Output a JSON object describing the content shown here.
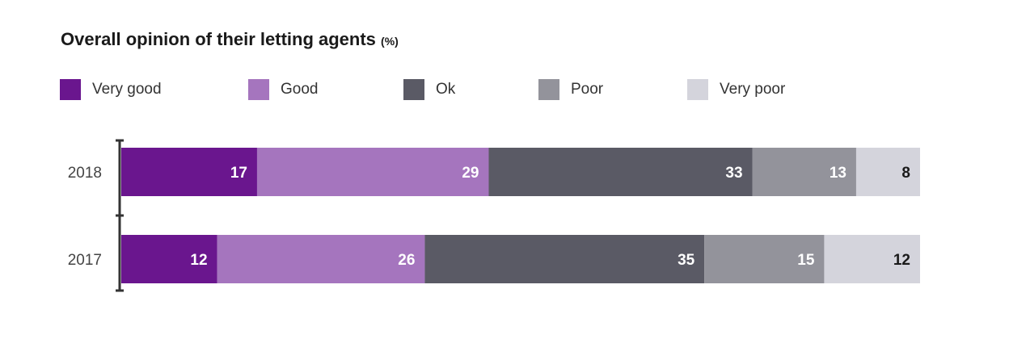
{
  "chart_data": {
    "type": "bar",
    "orientation": "horizontal",
    "stacked": true,
    "title": "Overall opinion of their letting agents",
    "title_unit": "(%)",
    "categories": [
      "2018",
      "2017"
    ],
    "series": [
      {
        "name": "Very good",
        "color": "#6a168e",
        "values": [
          17,
          12
        ],
        "label_color": "#ffffff"
      },
      {
        "name": "Good",
        "color": "#a575be",
        "values": [
          29,
          26
        ],
        "label_color": "#ffffff"
      },
      {
        "name": "Ok",
        "color": "#5a5a65",
        "values": [
          33,
          35
        ],
        "label_color": "#ffffff"
      },
      {
        "name": "Poor",
        "color": "#93939b",
        "values": [
          13,
          15
        ],
        "label_color": "#ffffff"
      },
      {
        "name": "Very poor",
        "color": "#d4d4dc",
        "values": [
          8,
          12
        ],
        "label_color": "#1a1a1a"
      }
    ],
    "xlim": [
      0,
      100
    ],
    "grid": false,
    "legend": "top-left"
  }
}
